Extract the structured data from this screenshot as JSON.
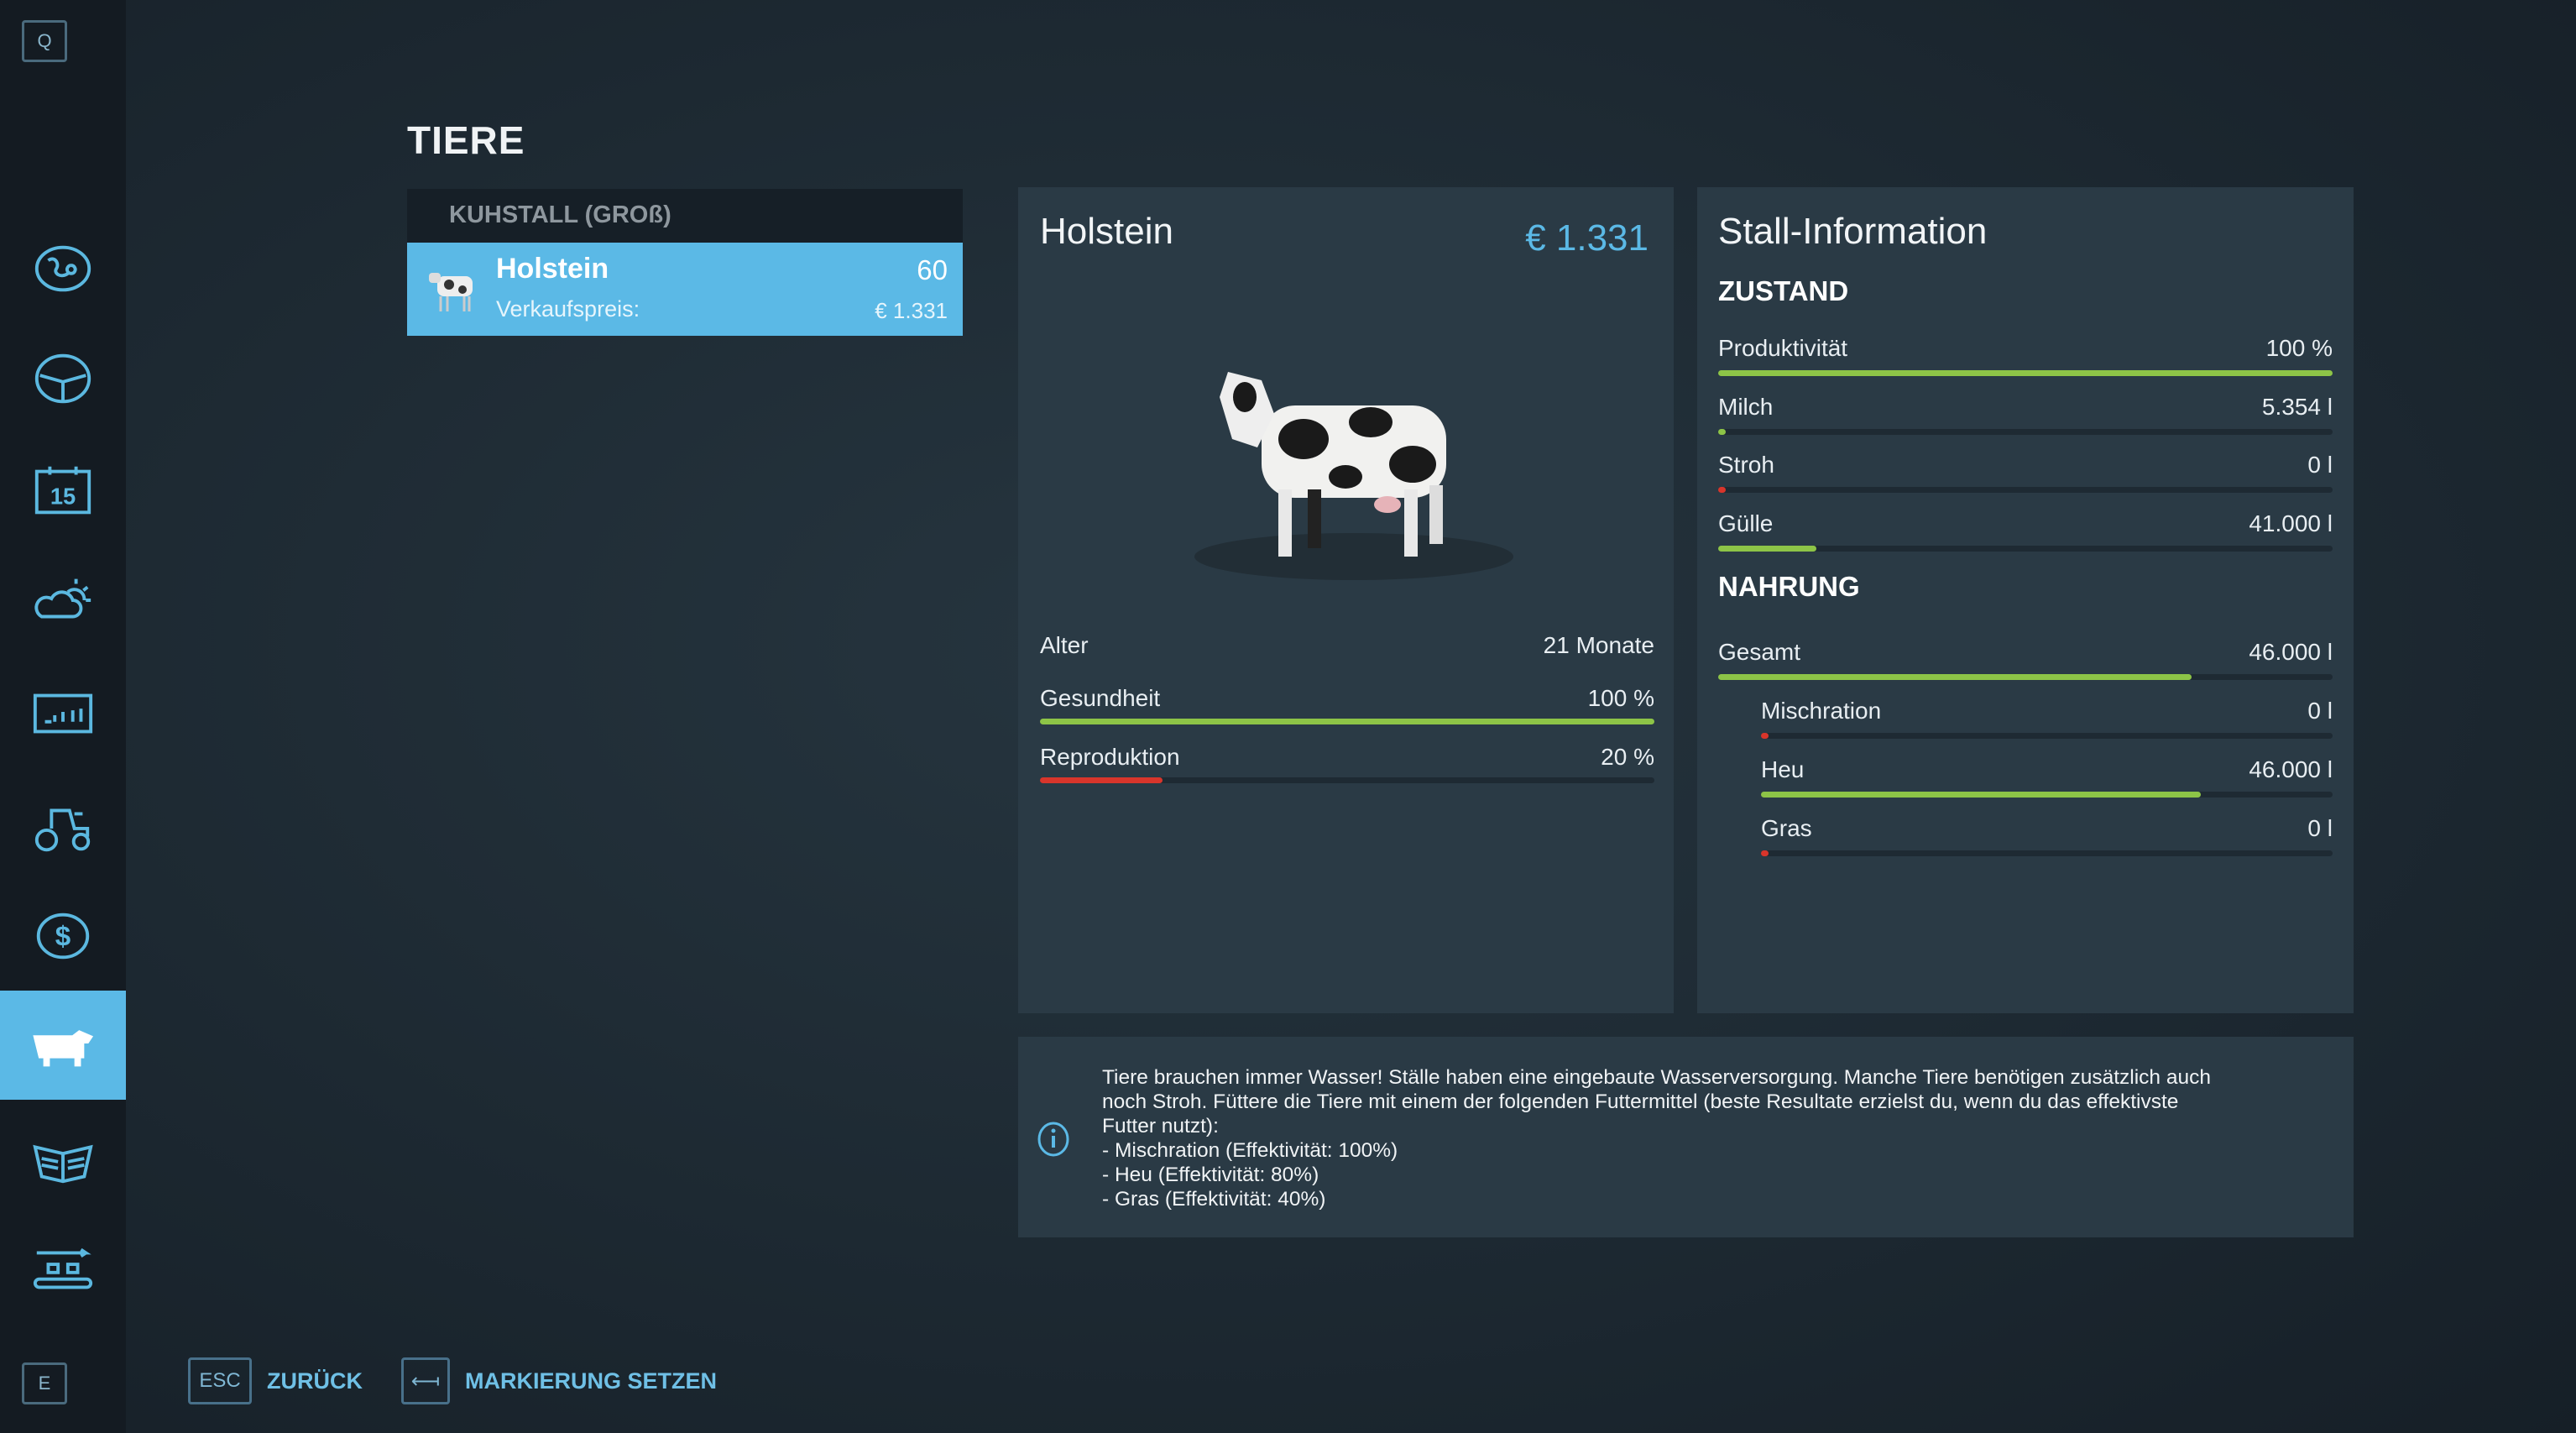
{
  "sidebar": {
    "top_key": "Q",
    "bottom_key": "E",
    "items": [
      "map",
      "steering-wheel",
      "calendar",
      "weather",
      "statistics",
      "vehicles",
      "finances",
      "animals",
      "help-guide",
      "production"
    ],
    "calendar_day": "15",
    "active": "animals"
  },
  "page": {
    "title": "TIERE"
  },
  "list": {
    "header": "KUHSTALL (GROß)",
    "items": [
      {
        "name": "Holstein",
        "count": "60",
        "price_label": "Verkaufspreis:",
        "price": "€ 1.331"
      }
    ]
  },
  "animal": {
    "name": "Holstein",
    "price": "€ 1.331",
    "age_label": "Alter",
    "age_value": "21 Monate",
    "stats": [
      {
        "label": "Gesundheit",
        "value": "100 %",
        "fraction": 1.0,
        "color": "#8dc447"
      },
      {
        "label": "Reproduktion",
        "value": "20 %",
        "fraction": 0.2,
        "color": "#d8352b"
      }
    ]
  },
  "stall": {
    "title": "Stall-Information",
    "zustand_heading": "ZUSTAND",
    "zustand": [
      {
        "label": "Produktivität",
        "value": "100 %",
        "fraction": 1.0,
        "color": "green"
      },
      {
        "label": "Milch",
        "value": "5.354 l",
        "fraction": 0.01,
        "color": "green"
      },
      {
        "label": "Stroh",
        "value": "0 l",
        "fraction": 0,
        "color": "red"
      },
      {
        "label": "Gülle",
        "value": "41.000 l",
        "fraction": 0.16,
        "color": "green"
      }
    ],
    "nahrung_heading": "NAHRUNG",
    "nahrung": [
      {
        "label": "Gesamt",
        "value": "46.000 l",
        "fraction": 0.77,
        "color": "green",
        "indent": false
      },
      {
        "label": "Mischration",
        "value": "0 l",
        "fraction": 0,
        "color": "red",
        "indent": true
      },
      {
        "label": "Heu",
        "value": "46.000 l",
        "fraction": 0.77,
        "color": "green",
        "indent": true
      },
      {
        "label": "Gras",
        "value": "0 l",
        "fraction": 0,
        "color": "red",
        "indent": true
      }
    ]
  },
  "info": {
    "text": "Tiere brauchen immer Wasser! Ställe haben eine eingebaute Wasserversorgung. Manche Tiere benötigen zusätzlich auch\nnoch Stroh. Füttere die Tiere mit einem der folgenden Futtermittel (beste Resultate erzielst du, wenn du das effektivste\nFutter nutzt):\n- Mischration (Effektivität: 100%)\n- Heu (Effektivität: 80%)\n- Gras (Effektivität: 40%)"
  },
  "footer": {
    "back_key": "ESC",
    "back_label": "ZURÜCK",
    "mark_key": "⟻",
    "mark_label": "MARKIERUNG SETZEN"
  }
}
